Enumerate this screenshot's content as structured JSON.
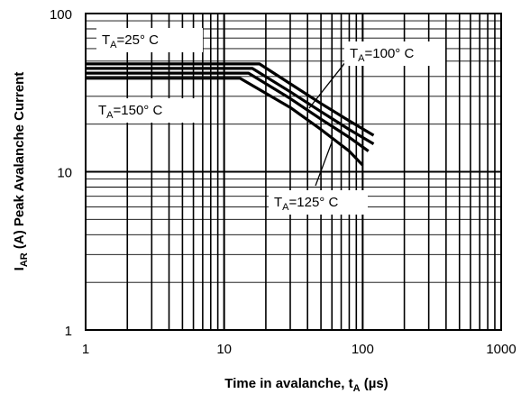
{
  "chart_data": {
    "type": "line",
    "xlabel": {
      "main": "Time in avalanche, t",
      "sub": "A",
      "unit": " (µs)"
    },
    "ylabel": {
      "main": "I",
      "sub": "AR",
      "rest": " (A) Peak Avalanche Current"
    },
    "x_scale": "log",
    "y_scale": "log",
    "xlim": [
      1,
      1000
    ],
    "ylim": [
      1,
      100
    ],
    "x_ticks": [
      "1",
      "10",
      "100",
      "1000"
    ],
    "y_ticks": [
      "1",
      "10",
      "100"
    ],
    "grid": true,
    "series": [
      {
        "name": "T_A=25° C",
        "x": [
          1,
          18,
          30,
          50,
          80,
          120
        ],
        "y": [
          48,
          48,
          36,
          27,
          21,
          17
        ]
      },
      {
        "name": "T_A=100° C",
        "x": [
          1,
          16,
          30,
          50,
          80,
          120
        ],
        "y": [
          45,
          45,
          32,
          24,
          18.5,
          15
        ]
      },
      {
        "name": "T_A=125° C",
        "x": [
          1,
          15,
          30,
          50,
          80,
          110
        ],
        "y": [
          42,
          42,
          29,
          21.5,
          16.5,
          13.5
        ]
      },
      {
        "name": "T_A=150° C",
        "x": [
          1,
          13,
          30,
          50,
          80,
          100
        ],
        "y": [
          39,
          39,
          25.5,
          18.5,
          13.5,
          11
        ]
      }
    ],
    "annotations": [
      {
        "main": "T",
        "sub": "A",
        "rest": "=25° C"
      },
      {
        "main": "T",
        "sub": "A",
        "rest": "=100° C"
      },
      {
        "main": "T",
        "sub": "A",
        "rest": "=150° C"
      },
      {
        "main": "T",
        "sub": "A",
        "rest": "=125° C"
      }
    ]
  }
}
